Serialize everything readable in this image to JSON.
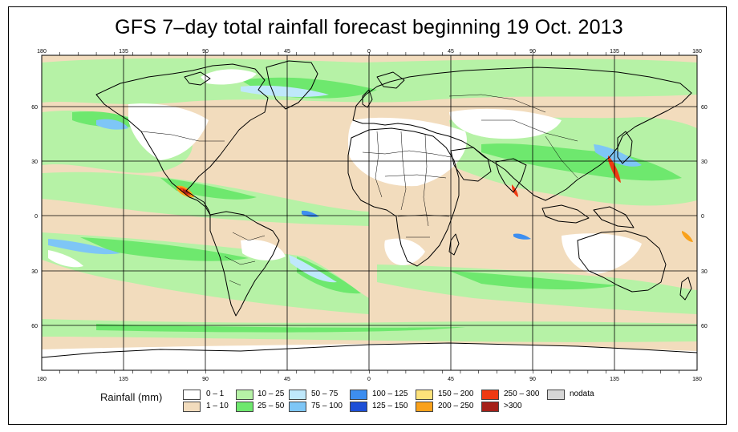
{
  "title": "GFS 7–day total rainfall forecast beginning 19 Oct. 2013",
  "top_ticks": [
    "180",
    "135",
    "90",
    "45",
    "0",
    "45",
    "90",
    "135",
    "180"
  ],
  "bottom_ticks": [
    "180",
    "135",
    "90",
    "45",
    "0",
    "45",
    "90",
    "135",
    "180"
  ],
  "left_ticks": [
    "60",
    "30",
    "0",
    "30",
    "60"
  ],
  "right_ticks": [
    "60",
    "30",
    "0",
    "30",
    "60"
  ],
  "legend": {
    "title": "Rainfall (mm)",
    "items": [
      {
        "label": "0 – 1",
        "color": "#ffffff"
      },
      {
        "label": "1 – 10",
        "color": "#f2dcbd"
      },
      {
        "label": "10 – 25",
        "color": "#b6f2a6"
      },
      {
        "label": "25 – 50",
        "color": "#6ee86e"
      },
      {
        "label": "50 – 75",
        "color": "#bfe8fb"
      },
      {
        "label": "75 – 100",
        "color": "#7ec6f6"
      },
      {
        "label": "100 – 125",
        "color": "#3d8ef0"
      },
      {
        "label": "125 – 150",
        "color": "#1d4fd6"
      },
      {
        "label": "150 – 200",
        "color": "#fde27a"
      },
      {
        "label": "200 – 250",
        "color": "#f9a11b"
      },
      {
        "label": "250 – 300",
        "color": "#ef3a12"
      },
      {
        "label": ">300",
        "color": "#a52018"
      },
      {
        "label": "nodata",
        "color": "#d6d6d6"
      }
    ]
  }
}
